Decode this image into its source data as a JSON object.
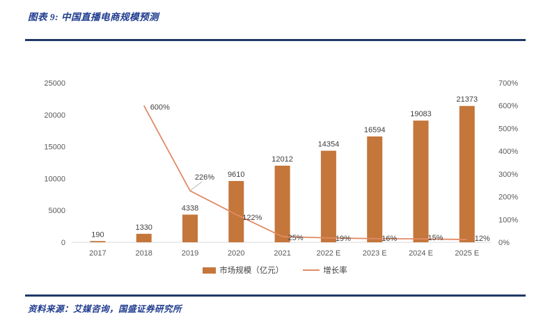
{
  "page": {
    "title": "图表 9: 中国直播电商规模预测",
    "source": "资料来源：艾媒咨询，国盛证券研究所"
  },
  "chart_data": {
    "type": "bar",
    "subtype": "bar-line-combo",
    "title": "中国直播电商规模预测",
    "categories": [
      "2017",
      "2018",
      "2019",
      "2020",
      "2021",
      "2022 E",
      "2023 E",
      "2024 E",
      "2025 E"
    ],
    "series": [
      {
        "name": "市场规模（亿元）",
        "type": "bar",
        "axis": "left",
        "color": "#c4763b",
        "values": [
          190,
          1330,
          4338,
          9610,
          12012,
          14354,
          16594,
          19083,
          21373
        ]
      },
      {
        "name": "增长率",
        "type": "line",
        "axis": "right",
        "color": "#e08b66",
        "unit": "%",
        "values": [
          null,
          600,
          226,
          122,
          25,
          19,
          16,
          15,
          12
        ],
        "labels": [
          "",
          "600%",
          "226%",
          "122%",
          "25%",
          "19%",
          "16%",
          "15%",
          "12%"
        ]
      }
    ],
    "left_axis": {
      "min": 0,
      "max": 25000,
      "step": 5000,
      "ticks": [
        "0",
        "5000",
        "10000",
        "15000",
        "20000",
        "25000"
      ]
    },
    "right_axis": {
      "min": 0,
      "max": 700,
      "step": 100,
      "ticks": [
        "0%",
        "100%",
        "200%",
        "300%",
        "400%",
        "500%",
        "600%",
        "700%"
      ]
    },
    "grid": false,
    "legend_position": "bottom",
    "legend": [
      {
        "label": "市场规模（亿元）",
        "swatch": "bar"
      },
      {
        "label": "增长率",
        "swatch": "line"
      }
    ],
    "colors": {
      "bar": "#c4763b",
      "line": "#e08b66",
      "axis_text": "#595959",
      "data_label_text": "#3f3f3f",
      "baseline": "#d9d9d9",
      "header_navy": "#1f3864",
      "title_blue": "#1f3c8f"
    }
  }
}
